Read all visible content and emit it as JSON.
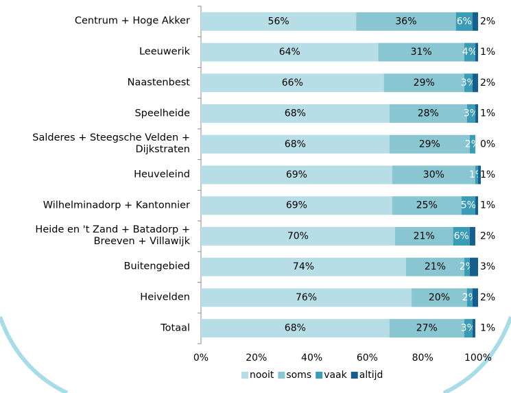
{
  "chart_data": {
    "type": "stacked-barh",
    "categories": [
      "Centrum + Hoge Akker",
      "Leeuwerik",
      "Naastenbest",
      "Speelheide",
      "Salderes + Steegsche Velden +\nDijkstraten",
      "Heuveleind",
      "Wilhelminadorp + Kantonnier",
      "Heide en 't Zand + Batadorp +\nBreeven + Villawijk",
      "Buitengebied",
      "Heivelden",
      "Totaal"
    ],
    "series": [
      {
        "name": "nooit",
        "color": "#b7dde6",
        "values": [
          56,
          64,
          66,
          68,
          68,
          69,
          69,
          70,
          74,
          76,
          68
        ],
        "value_labels": [
          "56%",
          "64%",
          "66%",
          "68%",
          "68%",
          "69%",
          "69%",
          "70%",
          "74%",
          "76%",
          "68%"
        ]
      },
      {
        "name": "soms",
        "color": "#8ac5d2",
        "values": [
          36,
          31,
          29,
          28,
          29,
          30,
          25,
          21,
          21,
          20,
          27
        ],
        "value_labels": [
          "36%",
          "31%",
          "29%",
          "28%",
          "29%",
          "30%",
          "25%",
          "21%",
          "21%",
          "20%",
          "27%"
        ]
      },
      {
        "name": "vaak",
        "color": "#3b9cb6",
        "values": [
          6,
          4,
          3,
          3,
          2,
          1,
          5,
          6,
          2,
          2,
          3
        ],
        "value_labels": [
          "6%",
          "4%",
          "3%",
          "3%",
          "2%",
          "1%",
          "5%",
          "6%",
          "2%",
          "2%",
          "3%"
        ]
      },
      {
        "name": "altijd",
        "color": "#175e8c",
        "values": [
          2,
          1,
          2,
          1,
          0,
          1,
          1,
          2,
          3,
          2,
          1
        ],
        "value_labels": [
          "2%",
          "1%",
          "2%",
          "1%",
          "0%",
          "1%",
          "1%",
          "2%",
          "3%",
          "2%",
          "1%"
        ]
      }
    ],
    "xlim": [
      0,
      100
    ],
    "xticks": [
      {
        "value": 0,
        "label": "0%"
      },
      {
        "value": 20,
        "label": "20%"
      },
      {
        "value": 40,
        "label": "40%"
      },
      {
        "value": 60,
        "label": "60%"
      },
      {
        "value": 80,
        "label": "80%"
      },
      {
        "value": 100,
        "label": "100%"
      }
    ],
    "legend": "bottom"
  }
}
